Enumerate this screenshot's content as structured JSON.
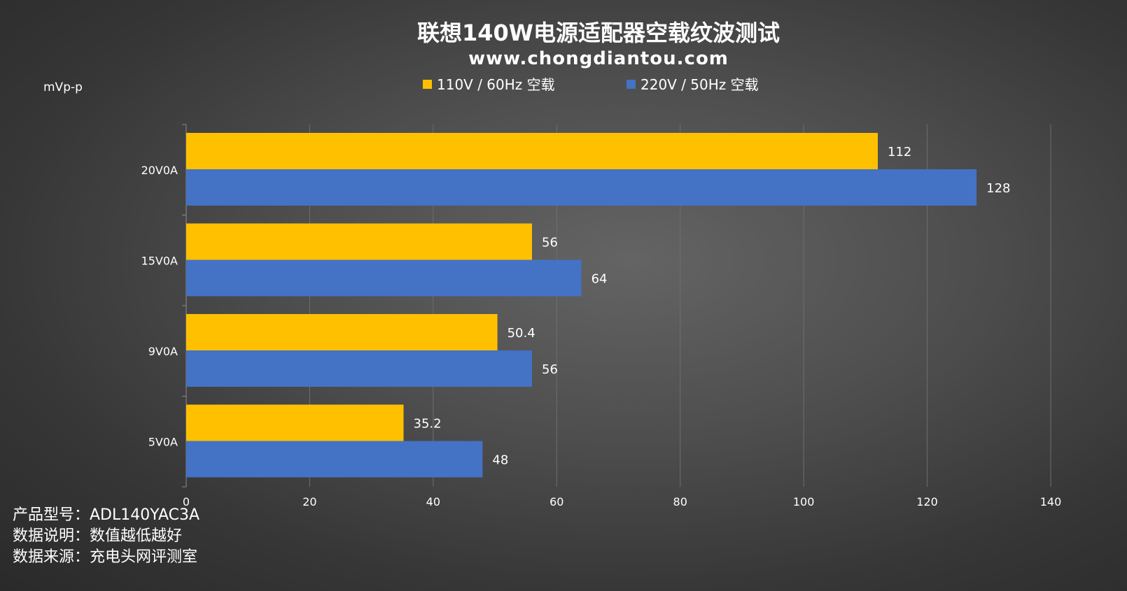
{
  "chart_data": {
    "type": "bar",
    "orientation": "horizontal",
    "title": "联想140W电源适配器空载纹波测试",
    "subtitle": "www.chongdiantou.com",
    "unit_label": "mVp-p",
    "categories": [
      "20V0A",
      "15V0A",
      "9V0A",
      "5V0A"
    ],
    "series": [
      {
        "name": "110V / 60Hz 空载",
        "color": "#FFC000",
        "values": [
          112,
          56,
          50.4,
          35.2
        ]
      },
      {
        "name": "220V / 50Hz 空载",
        "color": "#4472C4",
        "values": [
          128,
          64,
          56,
          48
        ]
      }
    ],
    "xlim": [
      0,
      140
    ],
    "xticks": [
      0,
      20,
      40,
      60,
      80,
      100,
      120,
      140
    ],
    "grid": true,
    "legend_position": "top"
  },
  "footer": {
    "lines": [
      "产品型号：ADL140YAC3A",
      "数据说明：数值越低越好",
      "数据来源：充电头网评测室"
    ]
  }
}
